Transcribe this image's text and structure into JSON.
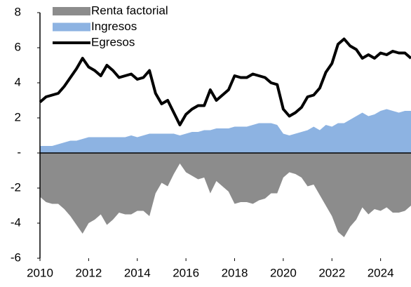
{
  "chart_data": {
    "type": "line",
    "x": [
      2010,
      2010.25,
      2010.5,
      2010.75,
      2011,
      2011.25,
      2011.5,
      2011.75,
      2012,
      2012.25,
      2012.5,
      2012.75,
      2013,
      2013.25,
      2013.5,
      2013.75,
      2014,
      2014.25,
      2014.5,
      2014.75,
      2015,
      2015.25,
      2015.5,
      2015.75,
      2016,
      2016.25,
      2016.5,
      2016.75,
      2017,
      2017.25,
      2017.5,
      2017.75,
      2018,
      2018.25,
      2018.5,
      2018.75,
      2019,
      2019.25,
      2019.5,
      2019.75,
      2020,
      2020.25,
      2020.5,
      2020.75,
      2021,
      2021.25,
      2021.5,
      2021.75,
      2022,
      2022.25,
      2022.5,
      2022.75,
      2023,
      2023.25,
      2023.5,
      2023.75,
      2024,
      2024.25,
      2024.5,
      2024.75,
      2025,
      2025.25
    ],
    "series": [
      {
        "name": "Renta factorial",
        "type": "area",
        "color": "#8c8c8c",
        "values": [
          -2.5,
          -2.8,
          -2.9,
          -2.9,
          -3.2,
          -3.6,
          -4.1,
          -4.6,
          -4.0,
          -3.8,
          -3.5,
          -4.1,
          -3.8,
          -3.4,
          -3.5,
          -3.5,
          -3.3,
          -3.3,
          -3.6,
          -2.3,
          -1.7,
          -1.9,
          -1.2,
          -0.6,
          -1.1,
          -1.3,
          -1.5,
          -1.4,
          -2.3,
          -1.6,
          -1.9,
          -2.2,
          -2.9,
          -2.8,
          -2.8,
          -2.9,
          -2.7,
          -2.6,
          -2.3,
          -2.3,
          -1.4,
          -1.1,
          -1.2,
          -1.4,
          -1.9,
          -1.8,
          -2.4,
          -3.0,
          -3.6,
          -4.5,
          -4.8,
          -4.2,
          -3.8,
          -3.1,
          -3.5,
          -3.2,
          -3.3,
          -3.1,
          -3.4,
          -3.4,
          -3.3,
          -3.0
        ]
      },
      {
        "name": "Ingresos",
        "type": "area",
        "color": "#8db3e2",
        "values": [
          0.4,
          0.4,
          0.4,
          0.5,
          0.6,
          0.7,
          0.7,
          0.8,
          0.9,
          0.9,
          0.9,
          0.9,
          0.9,
          0.9,
          0.9,
          1.0,
          0.9,
          1.0,
          1.1,
          1.1,
          1.1,
          1.1,
          1.1,
          1.0,
          1.1,
          1.2,
          1.2,
          1.3,
          1.3,
          1.4,
          1.4,
          1.4,
          1.5,
          1.5,
          1.5,
          1.6,
          1.7,
          1.7,
          1.7,
          1.6,
          1.1,
          1.0,
          1.1,
          1.2,
          1.3,
          1.5,
          1.3,
          1.6,
          1.5,
          1.7,
          1.7,
          1.9,
          2.1,
          2.3,
          2.1,
          2.2,
          2.4,
          2.5,
          2.4,
          2.3,
          2.4,
          2.4
        ]
      },
      {
        "name": "Egresos",
        "type": "line",
        "color": "#000000",
        "values": [
          2.9,
          3.2,
          3.3,
          3.4,
          3.8,
          4.3,
          4.8,
          5.4,
          4.9,
          4.7,
          4.4,
          5.0,
          4.7,
          4.3,
          4.4,
          4.5,
          4.2,
          4.3,
          4.7,
          3.4,
          2.8,
          3.0,
          2.3,
          1.6,
          2.2,
          2.5,
          2.7,
          2.7,
          3.6,
          3.0,
          3.3,
          3.6,
          4.4,
          4.3,
          4.3,
          4.5,
          4.4,
          4.3,
          4.0,
          3.9,
          2.5,
          2.1,
          2.3,
          2.6,
          3.2,
          3.3,
          3.7,
          4.6,
          5.1,
          6.2,
          6.5,
          6.1,
          5.9,
          5.4,
          5.6,
          5.4,
          5.7,
          5.6,
          5.8,
          5.7,
          5.7,
          5.4
        ]
      }
    ],
    "xlim": [
      2010,
      2025.25
    ],
    "xticks": [
      2010,
      2012,
      2014,
      2016,
      2018,
      2020,
      2022,
      2024
    ],
    "ylim": [
      -6,
      8
    ],
    "yticks": [
      -6,
      -4,
      -2,
      {
        "value": 0,
        "label": "-"
      },
      2,
      4,
      6,
      8
    ],
    "legend": "top-left"
  }
}
